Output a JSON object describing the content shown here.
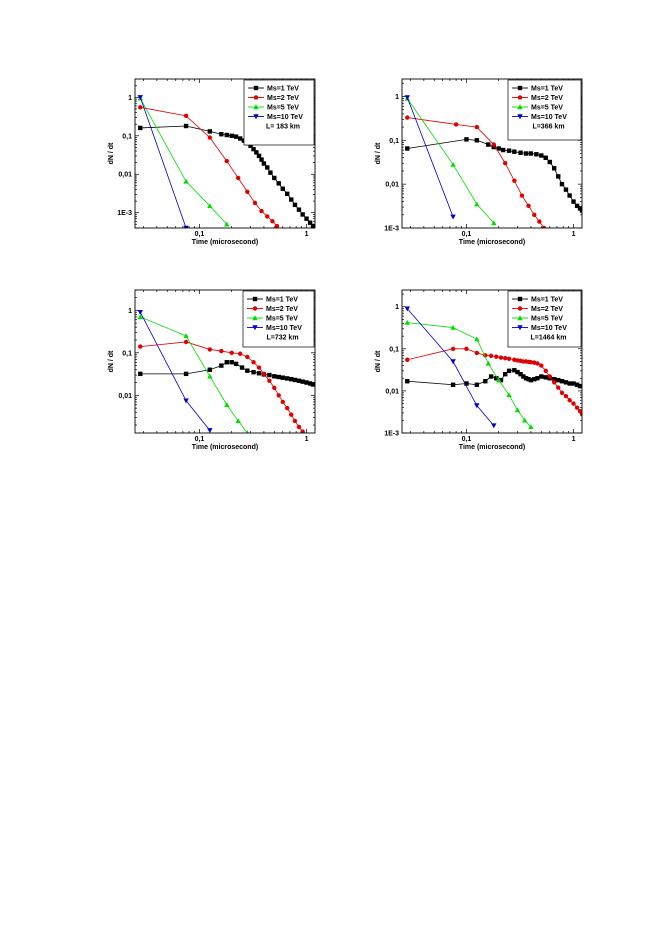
{
  "page": {
    "background": "#ffffff"
  },
  "series_styles": [
    {
      "name": "Ms=1  TeV",
      "color": "#000000",
      "marker": "square"
    },
    {
      "name": "Ms=2  TeV",
      "color": "#e00000",
      "marker": "circle"
    },
    {
      "name": "Ms=5  TeV",
      "color": "#00dd00",
      "marker": "triangle-up"
    },
    {
      "name": "Ms=10 TeV",
      "color": "#0000cc",
      "marker": "triangle-down"
    }
  ],
  "chart_data": [
    {
      "type": "scatter",
      "xlabel": "Time (microsecond)",
      "ylabel": "dN / dt",
      "xscale": "log",
      "yscale": "log",
      "xlim": [
        0.025,
        1.2
      ],
      "ylim": [
        0.0004,
        3
      ],
      "xticks": [
        {
          "v": 0.1,
          "label": "0,1"
        },
        {
          "v": 1,
          "label": "1"
        }
      ],
      "yticks": [
        {
          "v": 1,
          "label": "1"
        },
        {
          "v": 0.1,
          "label": "0,1"
        },
        {
          "v": 0.01,
          "label": "0,01"
        },
        {
          "v": 0.001,
          "label": "1E-3"
        }
      ],
      "legend": {
        "position": "top-right",
        "note": "L= 183 km"
      },
      "series": [
        {
          "name": "Ms=1  TeV",
          "x": [
            0.028,
            0.075,
            0.125,
            0.16,
            0.18,
            0.2,
            0.22,
            0.24,
            0.26,
            0.28,
            0.3,
            0.32,
            0.34,
            0.36,
            0.38,
            0.4,
            0.43,
            0.46,
            0.5,
            0.55,
            0.6,
            0.66,
            0.72,
            0.78,
            0.85,
            0.92,
            1.0,
            1.08,
            1.15
          ],
          "y": [
            0.16,
            0.18,
            0.13,
            0.11,
            0.105,
            0.1,
            0.095,
            0.085,
            0.075,
            0.065,
            0.055,
            0.045,
            0.037,
            0.03,
            0.024,
            0.019,
            0.015,
            0.011,
            0.008,
            0.0058,
            0.0042,
            0.0031,
            0.0022,
            0.0016,
            0.0012,
            0.0009,
            0.0007,
            0.00055,
            0.00045
          ]
        },
        {
          "name": "Ms=2  TeV",
          "x": [
            0.028,
            0.075,
            0.125,
            0.18,
            0.23,
            0.28,
            0.33,
            0.38,
            0.43,
            0.48,
            0.53
          ],
          "y": [
            0.55,
            0.33,
            0.09,
            0.022,
            0.008,
            0.0035,
            0.0018,
            0.0011,
            0.0008,
            0.0006,
            0.00045
          ]
        },
        {
          "name": "Ms=5  TeV",
          "x": [
            0.028,
            0.075,
            0.125,
            0.18
          ],
          "y": [
            0.95,
            0.0065,
            0.0015,
            0.0005
          ]
        },
        {
          "name": "Ms=10 TeV",
          "x": [
            0.028,
            0.075
          ],
          "y": [
            1.0,
            0.0004
          ]
        }
      ]
    },
    {
      "type": "scatter",
      "xlabel": "Time (microsecond)",
      "ylabel": "dN / dt",
      "xscale": "log",
      "yscale": "log",
      "xlim": [
        0.025,
        1.2
      ],
      "ylim": [
        0.001,
        2.5
      ],
      "xticks": [
        {
          "v": 0.1,
          "label": "0,1"
        },
        {
          "v": 1,
          "label": "1"
        }
      ],
      "yticks": [
        {
          "v": 1,
          "label": "1"
        },
        {
          "v": 0.1,
          "label": "0,1"
        },
        {
          "v": 0.01,
          "label": "0,01"
        },
        {
          "v": 0.001,
          "label": "1E-3"
        }
      ],
      "legend": {
        "position": "top-right",
        "note": "L=366 km"
      },
      "series": [
        {
          "name": "Ms=1  TeV",
          "x": [
            0.028,
            0.1,
            0.125,
            0.16,
            0.18,
            0.2,
            0.22,
            0.25,
            0.28,
            0.32,
            0.36,
            0.4,
            0.45,
            0.5,
            0.55,
            0.6,
            0.66,
            0.72,
            0.78,
            0.85,
            0.92,
            1.0,
            1.08,
            1.15,
            1.2
          ],
          "y": [
            0.065,
            0.105,
            0.1,
            0.08,
            0.07,
            0.065,
            0.06,
            0.058,
            0.055,
            0.052,
            0.05,
            0.05,
            0.048,
            0.045,
            0.04,
            0.032,
            0.023,
            0.015,
            0.01,
            0.0075,
            0.0055,
            0.004,
            0.0032,
            0.0028,
            0.0025
          ]
        },
        {
          "name": "Ms=2  TeV",
          "x": [
            0.028,
            0.08,
            0.125,
            0.18,
            0.23,
            0.28,
            0.33,
            0.38,
            0.43,
            0.48,
            0.53
          ],
          "y": [
            0.33,
            0.23,
            0.2,
            0.08,
            0.03,
            0.012,
            0.0055,
            0.0032,
            0.002,
            0.0014,
            0.001
          ]
        },
        {
          "name": "Ms=5  TeV",
          "x": [
            0.028,
            0.075,
            0.125,
            0.18
          ],
          "y": [
            0.9,
            0.028,
            0.0035,
            0.0013
          ]
        },
        {
          "name": "Ms=10 TeV",
          "x": [
            0.028,
            0.075
          ],
          "y": [
            0.95,
            0.0018
          ]
        }
      ]
    },
    {
      "type": "scatter",
      "xlabel": "Time (microsecond)",
      "ylabel": "dN / dt",
      "xscale": "log",
      "yscale": "log",
      "xlim": [
        0.025,
        1.2
      ],
      "ylim": [
        0.0013,
        3
      ],
      "xticks": [
        {
          "v": 0.1,
          "label": "0,1"
        },
        {
          "v": 1,
          "label": "1"
        }
      ],
      "yticks": [
        {
          "v": 1,
          "label": "1"
        },
        {
          "v": 0.1,
          "label": "0,1"
        },
        {
          "v": 0.01,
          "label": "0,01"
        }
      ],
      "legend": {
        "position": "top-right",
        "note": "L=732 km"
      },
      "series": [
        {
          "name": "Ms=1  TeV",
          "x": [
            0.028,
            0.075,
            0.125,
            0.16,
            0.18,
            0.2,
            0.22,
            0.25,
            0.28,
            0.32,
            0.36,
            0.4,
            0.45,
            0.5,
            0.55,
            0.6,
            0.66,
            0.72,
            0.78,
            0.85,
            0.92,
            1.0,
            1.08,
            1.15
          ],
          "y": [
            0.032,
            0.032,
            0.04,
            0.05,
            0.06,
            0.06,
            0.055,
            0.045,
            0.038,
            0.035,
            0.033,
            0.031,
            0.03,
            0.028,
            0.027,
            0.026,
            0.025,
            0.024,
            0.023,
            0.022,
            0.021,
            0.02,
            0.019,
            0.018
          ]
        },
        {
          "name": "Ms=2  TeV",
          "x": [
            0.028,
            0.075,
            0.125,
            0.16,
            0.2,
            0.24,
            0.28,
            0.32,
            0.36,
            0.4,
            0.45,
            0.5,
            0.55,
            0.6,
            0.66,
            0.72,
            0.78,
            0.85,
            0.92,
            1.0
          ],
          "y": [
            0.14,
            0.18,
            0.12,
            0.11,
            0.1,
            0.095,
            0.08,
            0.06,
            0.045,
            0.032,
            0.022,
            0.015,
            0.01,
            0.007,
            0.005,
            0.0035,
            0.0025,
            0.0018,
            0.0014,
            0.0011
          ]
        },
        {
          "name": "Ms=5  TeV",
          "x": [
            0.028,
            0.075,
            0.125,
            0.18,
            0.23,
            0.28
          ],
          "y": [
            0.7,
            0.25,
            0.028,
            0.006,
            0.0025,
            0.0013
          ]
        },
        {
          "name": "Ms=10 TeV",
          "x": [
            0.028,
            0.075,
            0.125
          ],
          "y": [
            0.9,
            0.0075,
            0.0015
          ]
        }
      ]
    },
    {
      "type": "scatter",
      "xlabel": "Time (microsecond)",
      "ylabel": "dN / dt",
      "xscale": "log",
      "yscale": "log",
      "xlim": [
        0.025,
        1.2
      ],
      "ylim": [
        0.001,
        2.5
      ],
      "xticks": [
        {
          "v": 0.1,
          "label": "0,1"
        },
        {
          "v": 1,
          "label": "1"
        }
      ],
      "yticks": [
        {
          "v": 1,
          "label": "1"
        },
        {
          "v": 0.1,
          "label": "0,1"
        },
        {
          "v": 0.01,
          "label": "0,01"
        },
        {
          "v": 0.001,
          "label": "1E-3"
        }
      ],
      "legend": {
        "position": "top-right",
        "note": "L=1464 km"
      },
      "series": [
        {
          "name": "Ms=1  TeV",
          "x": [
            0.028,
            0.075,
            0.1,
            0.125,
            0.15,
            0.17,
            0.19,
            0.21,
            0.23,
            0.25,
            0.28,
            0.3,
            0.32,
            0.34,
            0.36,
            0.38,
            0.4,
            0.43,
            0.46,
            0.5,
            0.55,
            0.6,
            0.66,
            0.72,
            0.78,
            0.85,
            0.92,
            1.0,
            1.08,
            1.15,
            1.2
          ],
          "y": [
            0.017,
            0.014,
            0.015,
            0.014,
            0.017,
            0.022,
            0.02,
            0.018,
            0.025,
            0.03,
            0.031,
            0.028,
            0.025,
            0.022,
            0.02,
            0.019,
            0.018,
            0.019,
            0.02,
            0.022,
            0.021,
            0.02,
            0.019,
            0.018,
            0.017,
            0.016,
            0.015,
            0.015,
            0.014,
            0.013,
            0.013
          ]
        },
        {
          "name": "Ms=2  TeV",
          "x": [
            0.028,
            0.075,
            0.1,
            0.125,
            0.15,
            0.17,
            0.19,
            0.21,
            0.23,
            0.25,
            0.28,
            0.3,
            0.32,
            0.34,
            0.36,
            0.38,
            0.4,
            0.43,
            0.46,
            0.5,
            0.55,
            0.6,
            0.66,
            0.72,
            0.78,
            0.85,
            0.92,
            1.0,
            1.08,
            1.15,
            1.2
          ],
          "y": [
            0.055,
            0.1,
            0.1,
            0.08,
            0.07,
            0.068,
            0.065,
            0.062,
            0.06,
            0.058,
            0.055,
            0.053,
            0.052,
            0.05,
            0.05,
            0.049,
            0.048,
            0.047,
            0.045,
            0.04,
            0.03,
            0.022,
            0.016,
            0.012,
            0.009,
            0.0075,
            0.006,
            0.005,
            0.004,
            0.0033,
            0.0028
          ]
        },
        {
          "name": "Ms=5  TeV",
          "x": [
            0.028,
            0.075,
            0.125,
            0.16,
            0.2,
            0.25,
            0.3,
            0.35,
            0.4
          ],
          "y": [
            0.42,
            0.32,
            0.17,
            0.045,
            0.018,
            0.008,
            0.0035,
            0.002,
            0.0014
          ]
        },
        {
          "name": "Ms=10 TeV",
          "x": [
            0.028,
            0.075,
            0.125,
            0.18
          ],
          "y": [
            0.9,
            0.05,
            0.0045,
            0.0015
          ]
        }
      ]
    }
  ]
}
